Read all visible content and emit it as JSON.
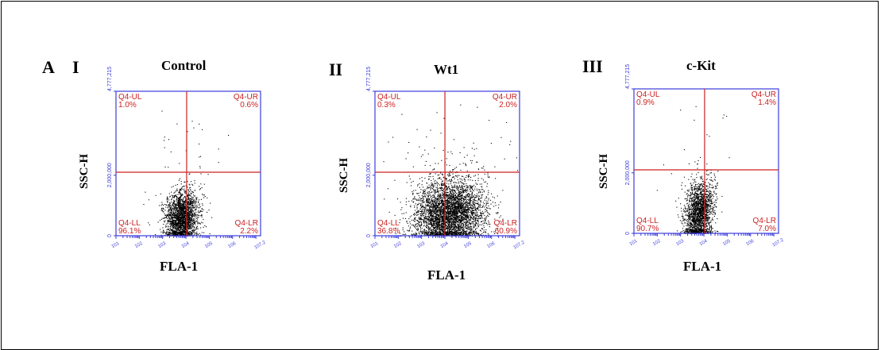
{
  "figure": {
    "letter": "A"
  },
  "colors": {
    "plot_border": "#3c3cdc",
    "quadrant_line": "#cc2222",
    "gate_text": "#cc2222",
    "dots": "#000000"
  },
  "chart_data": [
    {
      "type": "scatter",
      "roman": "I",
      "title": "Control",
      "xlabel": "FLA-1",
      "ylabel": "SSC-H",
      "x_scale": "log",
      "xlim": [
        1,
        7.2
      ],
      "x_ticks": [
        "10^1",
        "10^2",
        "10^3",
        "10^4",
        "10^5",
        "10^6",
        "10^7.2"
      ],
      "ylim": [
        0,
        4777215
      ],
      "y_ticks": [
        "0",
        "2,000,000",
        "4,777,215"
      ],
      "quadrant_divider": {
        "x_log": 4.03,
        "y": 2100000
      },
      "quadrants": {
        "UL": {
          "label": "Q4-UL",
          "pct": "1.0%"
        },
        "UR": {
          "label": "Q4-UR",
          "pct": "0.6%"
        },
        "LL": {
          "label": "Q4-LL",
          "pct": "96.1%"
        },
        "LR": {
          "label": "Q4-LR",
          "pct": "2.2%"
        }
      },
      "cloud": {
        "x_center_log": 3.8,
        "x_spread": 0.35,
        "y_center": 600000,
        "y_spread": 450000,
        "n": 2300,
        "skew": 0.55
      }
    },
    {
      "type": "scatter",
      "roman": "II",
      "title": "Wt1",
      "xlabel": "FLA-1",
      "ylabel": "SSC-H",
      "x_scale": "log",
      "xlim": [
        1,
        7.2
      ],
      "x_ticks": [
        "10^1",
        "10^2",
        "10^3",
        "10^4",
        "10^5",
        "10^6",
        "10^7.2"
      ],
      "ylim": [
        0,
        4777215
      ],
      "y_ticks": [
        "0",
        "2,000,000",
        "4,777,215"
      ],
      "quadrant_divider": {
        "x_log": 4.0,
        "y": 2100000
      },
      "quadrants": {
        "UL": {
          "label": "Q4-UL",
          "pct": "0.3%"
        },
        "UR": {
          "label": "Q4-UR",
          "pct": "2.0%"
        },
        "LL": {
          "label": "Q4-LL",
          "pct": "36.8%"
        },
        "LR": {
          "label": "Q4-LR",
          "pct": "60.9%"
        }
      },
      "cloud": {
        "x_center_log": 4.15,
        "x_spread": 0.75,
        "y_center": 750000,
        "y_spread": 550000,
        "n": 4200,
        "skew": 0.35
      }
    },
    {
      "type": "scatter",
      "roman": "III",
      "title": "c-Kit",
      "xlabel": "FLA-1",
      "ylabel": "SSC-H",
      "x_scale": "log",
      "xlim": [
        1,
        7.2
      ],
      "x_ticks": [
        "10^1",
        "10^2",
        "10^3",
        "10^4",
        "10^5",
        "10^6",
        "10^7.2"
      ],
      "ylim": [
        0,
        4777215
      ],
      "y_ticks": [
        "0",
        "2,000,000",
        "4,777,215"
      ],
      "quadrant_divider": {
        "x_log": 4.03,
        "y": 2100000
      },
      "quadrants": {
        "UL": {
          "label": "Q4-UL",
          "pct": "0.9%"
        },
        "UR": {
          "label": "Q4-UR",
          "pct": "1.4%"
        },
        "LL": {
          "label": "Q4-LL",
          "pct": "90.7%"
        },
        "LR": {
          "label": "Q4-LR",
          "pct": "7.0%"
        }
      },
      "cloud": {
        "x_center_log": 3.75,
        "x_spread": 0.3,
        "y_center": 650000,
        "y_spread": 550000,
        "n": 2000,
        "skew": 0.6
      }
    }
  ]
}
